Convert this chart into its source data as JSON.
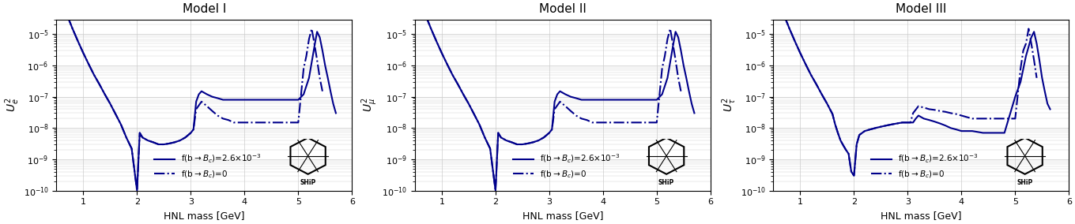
{
  "titles": [
    "Model I",
    "Model II",
    "Model III"
  ],
  "ylabels": [
    "$U_e^2$",
    "$U_\\mu^2$",
    "$U_\\tau^2$"
  ],
  "xlabel": "HNL mass [GeV]",
  "xlim": [
    0.5,
    6.0
  ],
  "ylim": [
    1e-10,
    3e-05
  ],
  "color": "#00008B",
  "legend_solid": "f(b$\\to B_c$)=2.6$\\times$10$^{-3}$",
  "legend_dash": "f(b$\\to B_c$)=0",
  "grid_color": "#cccccc",
  "bg_color": "#ffffff"
}
